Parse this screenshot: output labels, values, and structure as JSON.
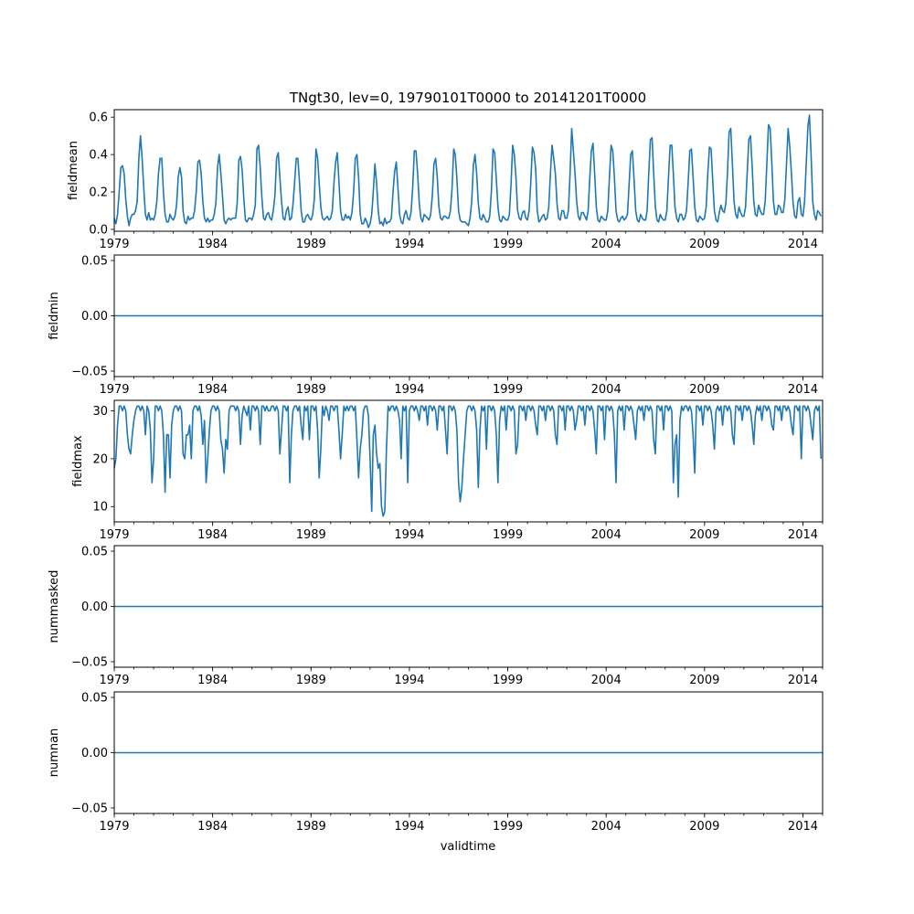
{
  "chart_data": {
    "type": "line",
    "title": "TNgt30, lev=0, 19790101T0000 to 20141201T0000",
    "xlabel": "validtime",
    "x_start": 1979.0,
    "x_end": 2015.0,
    "x_ticks": [
      "1979",
      "1984",
      "1989",
      "1994",
      "1999",
      "2004",
      "2009",
      "2014"
    ],
    "x_tick_years": [
      1979,
      1984,
      1989,
      1994,
      1999,
      2004,
      2009,
      2014
    ],
    "series_color": "#1f77b4",
    "panels": [
      {
        "ylabel": "fieldmean",
        "ylim": [
          -0.01,
          0.64
        ],
        "y_ticks": [
          "0.0",
          "0.2",
          "0.4",
          "0.6"
        ],
        "y_tick_values": [
          0.0,
          0.2,
          0.4,
          0.6
        ],
        "values": [
          0.06,
          0.03,
          0.08,
          0.2,
          0.33,
          0.34,
          0.3,
          0.16,
          0.07,
          0.02,
          0.06,
          0.08,
          0.08,
          0.1,
          0.15,
          0.38,
          0.5,
          0.38,
          0.22,
          0.08,
          0.05,
          0.09,
          0.05,
          0.06,
          0.05,
          0.08,
          0.15,
          0.3,
          0.38,
          0.38,
          0.2,
          0.08,
          0.04,
          0.04,
          0.08,
          0.06,
          0.05,
          0.07,
          0.13,
          0.28,
          0.33,
          0.28,
          0.1,
          0.04,
          0.03,
          0.07,
          0.05,
          0.06,
          0.06,
          0.1,
          0.2,
          0.36,
          0.37,
          0.3,
          0.15,
          0.06,
          0.04,
          0.06,
          0.04,
          0.05,
          0.05,
          0.08,
          0.14,
          0.33,
          0.4,
          0.3,
          0.18,
          0.05,
          0.03,
          0.05,
          0.06,
          0.05,
          0.06,
          0.06,
          0.06,
          0.14,
          0.37,
          0.39,
          0.32,
          0.17,
          0.05,
          0.04,
          0.06,
          0.06,
          0.05,
          0.08,
          0.13,
          0.43,
          0.45,
          0.33,
          0.17,
          0.06,
          0.05,
          0.08,
          0.09,
          0.06,
          0.05,
          0.1,
          0.18,
          0.38,
          0.41,
          0.28,
          0.15,
          0.06,
          0.05,
          0.1,
          0.12,
          0.05,
          0.06,
          0.13,
          0.25,
          0.38,
          0.38,
          0.25,
          0.1,
          0.04,
          0.04,
          0.07,
          0.08,
          0.06,
          0.05,
          0.08,
          0.16,
          0.43,
          0.38,
          0.25,
          0.12,
          0.06,
          0.05,
          0.06,
          0.07,
          0.05,
          0.06,
          0.1,
          0.25,
          0.36,
          0.41,
          0.26,
          0.1,
          0.05,
          0.05,
          0.08,
          0.06,
          0.07,
          0.05,
          0.09,
          0.2,
          0.38,
          0.4,
          0.28,
          0.08,
          0.03,
          0.03,
          0.06,
          0.04,
          0.01,
          0.03,
          0.08,
          0.2,
          0.35,
          0.25,
          0.1,
          0.03,
          0.04,
          0.02,
          0.06,
          0.03,
          0.04,
          0.04,
          0.06,
          0.2,
          0.31,
          0.36,
          0.22,
          0.08,
          0.04,
          0.03,
          0.08,
          0.1,
          0.06,
          0.05,
          0.09,
          0.22,
          0.42,
          0.42,
          0.3,
          0.14,
          0.06,
          0.04,
          0.08,
          0.07,
          0.06,
          0.05,
          0.08,
          0.18,
          0.35,
          0.38,
          0.28,
          0.12,
          0.06,
          0.05,
          0.07,
          0.07,
          0.06,
          0.06,
          0.1,
          0.22,
          0.43,
          0.4,
          0.27,
          0.1,
          0.05,
          0.04,
          0.04,
          0.04,
          0.03,
          0.02,
          0.06,
          0.15,
          0.34,
          0.4,
          0.3,
          0.14,
          0.06,
          0.05,
          0.08,
          0.06,
          0.04,
          0.04,
          0.07,
          0.2,
          0.43,
          0.41,
          0.27,
          0.12,
          0.05,
          0.04,
          0.07,
          0.06,
          0.05,
          0.05,
          0.08,
          0.24,
          0.45,
          0.4,
          0.28,
          0.1,
          0.06,
          0.05,
          0.09,
          0.1,
          0.06,
          0.05,
          0.1,
          0.25,
          0.44,
          0.41,
          0.32,
          0.1,
          0.04,
          0.05,
          0.07,
          0.08,
          0.05,
          0.06,
          0.12,
          0.3,
          0.45,
          0.38,
          0.3,
          0.14,
          0.06,
          0.05,
          0.1,
          0.1,
          0.06,
          0.06,
          0.1,
          0.3,
          0.54,
          0.42,
          0.3,
          0.15,
          0.07,
          0.05,
          0.09,
          0.09,
          0.07,
          0.05,
          0.1,
          0.28,
          0.42,
          0.46,
          0.3,
          0.12,
          0.05,
          0.04,
          0.07,
          0.06,
          0.05,
          0.05,
          0.1,
          0.28,
          0.45,
          0.42,
          0.28,
          0.1,
          0.05,
          0.04,
          0.06,
          0.07,
          0.05,
          0.06,
          0.08,
          0.24,
          0.4,
          0.42,
          0.27,
          0.1,
          0.05,
          0.04,
          0.08,
          0.06,
          0.05,
          0.05,
          0.1,
          0.3,
          0.48,
          0.49,
          0.3,
          0.12,
          0.05,
          0.04,
          0.08,
          0.06,
          0.05,
          0.05,
          0.1,
          0.28,
          0.45,
          0.45,
          0.3,
          0.12,
          0.06,
          0.04,
          0.08,
          0.08,
          0.05,
          0.06,
          0.1,
          0.25,
          0.42,
          0.43,
          0.28,
          0.12,
          0.05,
          0.04,
          0.07,
          0.06,
          0.05,
          0.06,
          0.12,
          0.3,
          0.44,
          0.43,
          0.26,
          0.1,
          0.05,
          0.04,
          0.09,
          0.13,
          0.1,
          0.09,
          0.14,
          0.3,
          0.52,
          0.54,
          0.35,
          0.15,
          0.08,
          0.06,
          0.12,
          0.09,
          0.07,
          0.07,
          0.12,
          0.3,
          0.48,
          0.5,
          0.34,
          0.15,
          0.08,
          0.07,
          0.13,
          0.1,
          0.08,
          0.08,
          0.15,
          0.35,
          0.56,
          0.54,
          0.36,
          0.15,
          0.08,
          0.08,
          0.13,
          0.12,
          0.09,
          0.09,
          0.16,
          0.35,
          0.54,
          0.44,
          0.3,
          0.14,
          0.07,
          0.06,
          0.15,
          0.17,
          0.08,
          0.07,
          0.15,
          0.35,
          0.55,
          0.61,
          0.4,
          0.15,
          0.08,
          0.05,
          0.1,
          0.09,
          0.07
        ]
      },
      {
        "ylabel": "fieldmin",
        "ylim": [
          -0.055,
          0.055
        ],
        "y_ticks": [
          "−0.05",
          "0.00",
          "0.05"
        ],
        "y_tick_values": [
          -0.05,
          0.0,
          0.05
        ],
        "constant": 0.0
      },
      {
        "ylabel": "fieldmax",
        "ylim": [
          6.8,
          32.2
        ],
        "y_ticks": [
          "10",
          "20",
          "30"
        ],
        "y_tick_values": [
          10,
          20,
          30
        ],
        "values": [
          18,
          20,
          27,
          31,
          31,
          30,
          31,
          30,
          25,
          22,
          21,
          25,
          28,
          30,
          31,
          31,
          30,
          31,
          30,
          25,
          31,
          30,
          26,
          15,
          20,
          31,
          31,
          30,
          31,
          30,
          25,
          13,
          25,
          25,
          16,
          27,
          30,
          31,
          31,
          30,
          31,
          30,
          21,
          20,
          25,
          25,
          27,
          20,
          30,
          31,
          31,
          30,
          31,
          29,
          23,
          28,
          15,
          20,
          26,
          30,
          31,
          31,
          30,
          31,
          30,
          24,
          22,
          17,
          24,
          22,
          30,
          31,
          31,
          31,
          30,
          31,
          30,
          23,
          29,
          31,
          30,
          29,
          31,
          26,
          31,
          31,
          30,
          31,
          30,
          23,
          31,
          31,
          30,
          31,
          30,
          30,
          31,
          31,
          30,
          31,
          30,
          21,
          26,
          31,
          31,
          30,
          31,
          15,
          25,
          30,
          31,
          31,
          30,
          31,
          27,
          24,
          31,
          30,
          31,
          24,
          31,
          31,
          30,
          31,
          26,
          16,
          22,
          31,
          29,
          31,
          30,
          28,
          31,
          31,
          30,
          31,
          31,
          26,
          20,
          25,
          31,
          30,
          31,
          30,
          31,
          31,
          30,
          31,
          24,
          16,
          22,
          25,
          30,
          31,
          31,
          29,
          20,
          9,
          25,
          27,
          21,
          18,
          19,
          10,
          8,
          9,
          22,
          31,
          30,
          31,
          31,
          30,
          31,
          30,
          28,
          20,
          31,
          30,
          31,
          15,
          30,
          31,
          31,
          30,
          31,
          30,
          28,
          31,
          31,
          30,
          31,
          27,
          31,
          31,
          30,
          31,
          30,
          26,
          31,
          31,
          30,
          31,
          26,
          21,
          31,
          31,
          30,
          31,
          30,
          26,
          15,
          11,
          14,
          20,
          25,
          30,
          31,
          31,
          30,
          31,
          30,
          26,
          14,
          26,
          31,
          30,
          31,
          22,
          31,
          31,
          30,
          31,
          30,
          25,
          15,
          28,
          31,
          30,
          31,
          26,
          31,
          31,
          30,
          31,
          30,
          21,
          23,
          31,
          31,
          30,
          31,
          28,
          31,
          31,
          30,
          31,
          30,
          27,
          25,
          31,
          31,
          30,
          31,
          28,
          31,
          31,
          30,
          31,
          30,
          25,
          23,
          31,
          31,
          30,
          31,
          26,
          31,
          31,
          30,
          31,
          30,
          26,
          28,
          31,
          31,
          30,
          31,
          27,
          31,
          31,
          30,
          31,
          30,
          26,
          21,
          31,
          31,
          30,
          31,
          24,
          31,
          31,
          30,
          31,
          30,
          25,
          15,
          30,
          31,
          30,
          31,
          26,
          31,
          31,
          30,
          31,
          30,
          27,
          24,
          30,
          31,
          30,
          31,
          28,
          31,
          31,
          30,
          31,
          30,
          24,
          21,
          31,
          31,
          30,
          31,
          26,
          31,
          31,
          30,
          31,
          30,
          15,
          23,
          25,
          12,
          28,
          31,
          30,
          31,
          31,
          30,
          31,
          30,
          25,
          17,
          31,
          31,
          30,
          31,
          27,
          31,
          31,
          30,
          31,
          30,
          27,
          22,
          30,
          31,
          30,
          31,
          27,
          31,
          31,
          30,
          31,
          30,
          25,
          23,
          31,
          31,
          30,
          31,
          28,
          31,
          31,
          30,
          31,
          30,
          27,
          23,
          29,
          31,
          30,
          31,
          28,
          31,
          31,
          30,
          31,
          30,
          27,
          26,
          31,
          31,
          30,
          31,
          28,
          31,
          31,
          30,
          31,
          30,
          27,
          25,
          31,
          31,
          30,
          31,
          20,
          31,
          31,
          30,
          31,
          30,
          27,
          24,
          30,
          31,
          30,
          31,
          20
        ]
      },
      {
        "ylabel": "nummasked",
        "ylim": [
          -0.055,
          0.055
        ],
        "y_ticks": [
          "−0.05",
          "0.00",
          "0.05"
        ],
        "y_tick_values": [
          -0.05,
          0.0,
          0.05
        ],
        "constant": 0.0
      },
      {
        "ylabel": "numnan",
        "ylim": [
          -0.055,
          0.055
        ],
        "y_ticks": [
          "−0.05",
          "0.00",
          "0.05"
        ],
        "y_tick_values": [
          -0.05,
          0.0,
          0.05
        ],
        "constant": 0.0
      }
    ]
  }
}
